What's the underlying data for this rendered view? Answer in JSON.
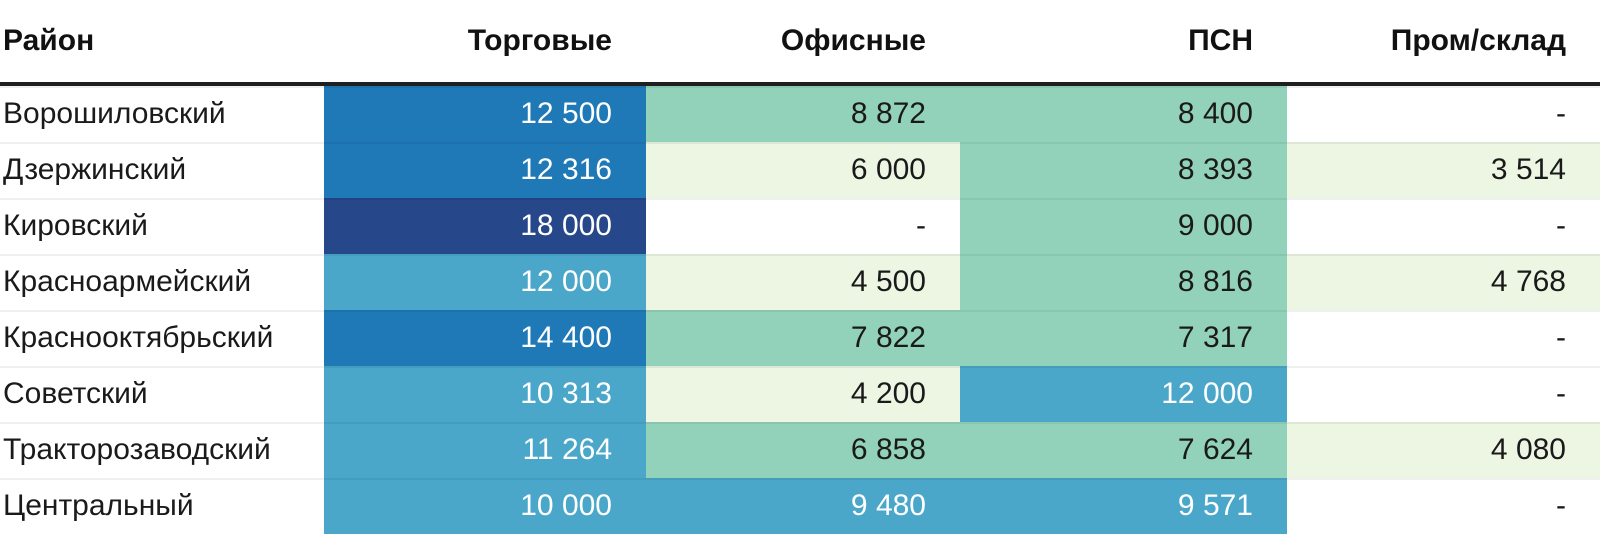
{
  "table": {
    "columns": [
      {
        "key": "district",
        "label": "Район"
      },
      {
        "key": "retail",
        "label": "Торговые"
      },
      {
        "key": "office",
        "label": "Офисные"
      },
      {
        "key": "psn",
        "label": "ПСН"
      },
      {
        "key": "industrial",
        "label": "Пром/склад"
      }
    ],
    "palette": {
      "navy": {
        "bg": "#27478B",
        "fg": "#FFFFFF"
      },
      "blue": {
        "bg": "#1F79B7",
        "fg": "#FFFFFF"
      },
      "lightblue": {
        "bg": "#4AA7C9",
        "fg": "#FFFFFF"
      },
      "teal": {
        "bg": "#93D2BA",
        "fg": "#1A1A1A"
      },
      "lightgreen": {
        "bg": "#ECF6E3",
        "fg": "#1A1A1A"
      },
      "none": {
        "bg": "#FFFFFF",
        "fg": "#1A1A1A"
      }
    },
    "missing_marker": "-",
    "rows": [
      {
        "district": "Ворошиловский",
        "cells": [
          {
            "value": "12 500",
            "level": "blue"
          },
          {
            "value": "8 872",
            "level": "teal"
          },
          {
            "value": "8 400",
            "level": "teal"
          },
          {
            "value": "-",
            "level": "none"
          }
        ]
      },
      {
        "district": "Дзержинский",
        "cells": [
          {
            "value": "12 316",
            "level": "blue"
          },
          {
            "value": "6 000",
            "level": "lightgreen"
          },
          {
            "value": "8 393",
            "level": "teal"
          },
          {
            "value": "3 514",
            "level": "lightgreen"
          }
        ]
      },
      {
        "district": "Кировский",
        "cells": [
          {
            "value": "18 000",
            "level": "navy"
          },
          {
            "value": "-",
            "level": "none"
          },
          {
            "value": "9 000",
            "level": "teal"
          },
          {
            "value": "-",
            "level": "none"
          }
        ]
      },
      {
        "district": "Красноармейский",
        "cells": [
          {
            "value": "12 000",
            "level": "lightblue"
          },
          {
            "value": "4 500",
            "level": "lightgreen"
          },
          {
            "value": "8 816",
            "level": "teal"
          },
          {
            "value": "4 768",
            "level": "lightgreen"
          }
        ]
      },
      {
        "district": "Краснооктябрьский",
        "cells": [
          {
            "value": "14 400",
            "level": "blue"
          },
          {
            "value": "7 822",
            "level": "teal"
          },
          {
            "value": "7 317",
            "level": "teal"
          },
          {
            "value": "-",
            "level": "none"
          }
        ]
      },
      {
        "district": "Советский",
        "cells": [
          {
            "value": "10 313",
            "level": "lightblue"
          },
          {
            "value": "4 200",
            "level": "lightgreen"
          },
          {
            "value": "12 000",
            "level": "lightblue"
          },
          {
            "value": "-",
            "level": "none"
          }
        ]
      },
      {
        "district": "Тракторозаводский",
        "cells": [
          {
            "value": "11 264",
            "level": "lightblue"
          },
          {
            "value": "6 858",
            "level": "teal"
          },
          {
            "value": "7 624",
            "level": "teal"
          },
          {
            "value": "4 080",
            "level": "lightgreen"
          }
        ]
      },
      {
        "district": "Центральный",
        "cells": [
          {
            "value": "10 000",
            "level": "lightblue"
          },
          {
            "value": "9 480",
            "level": "lightblue"
          },
          {
            "value": "9 571",
            "level": "lightblue"
          },
          {
            "value": "-",
            "level": "none"
          }
        ]
      }
    ]
  },
  "chart_data": {
    "type": "heatmap",
    "rows": [
      "Ворошиловский",
      "Дзержинский",
      "Кировский",
      "Красноармейский",
      "Краснооктябрьский",
      "Советский",
      "Тракторозаводский",
      "Центральный"
    ],
    "columns": [
      "Торговые",
      "Офисные",
      "ПСН",
      "Пром/склад"
    ],
    "values": [
      [
        12500,
        8872,
        8400,
        null
      ],
      [
        12316,
        6000,
        8393,
        3514
      ],
      [
        18000,
        null,
        9000,
        null
      ],
      [
        12000,
        4500,
        8816,
        4768
      ],
      [
        14400,
        7822,
        7317,
        null
      ],
      [
        10313,
        4200,
        12000,
        null
      ],
      [
        11264,
        6858,
        7624,
        4080
      ],
      [
        10000,
        9480,
        9571,
        null
      ]
    ],
    "row_header_label": "Район",
    "color_scale_bins": [
      {
        "range": [
          3514,
          6000
        ],
        "color": "#ECF6E3"
      },
      {
        "range": [
          6858,
          9000
        ],
        "color": "#93D2BA"
      },
      {
        "range": [
          9480,
          12000
        ],
        "color": "#4AA7C9"
      },
      {
        "range": [
          12316,
          14400
        ],
        "color": "#1F79B7"
      },
      {
        "range": [
          18000,
          18000
        ],
        "color": "#27478B"
      }
    ],
    "missing_marker": "-",
    "legend": "none",
    "grid": false
  }
}
